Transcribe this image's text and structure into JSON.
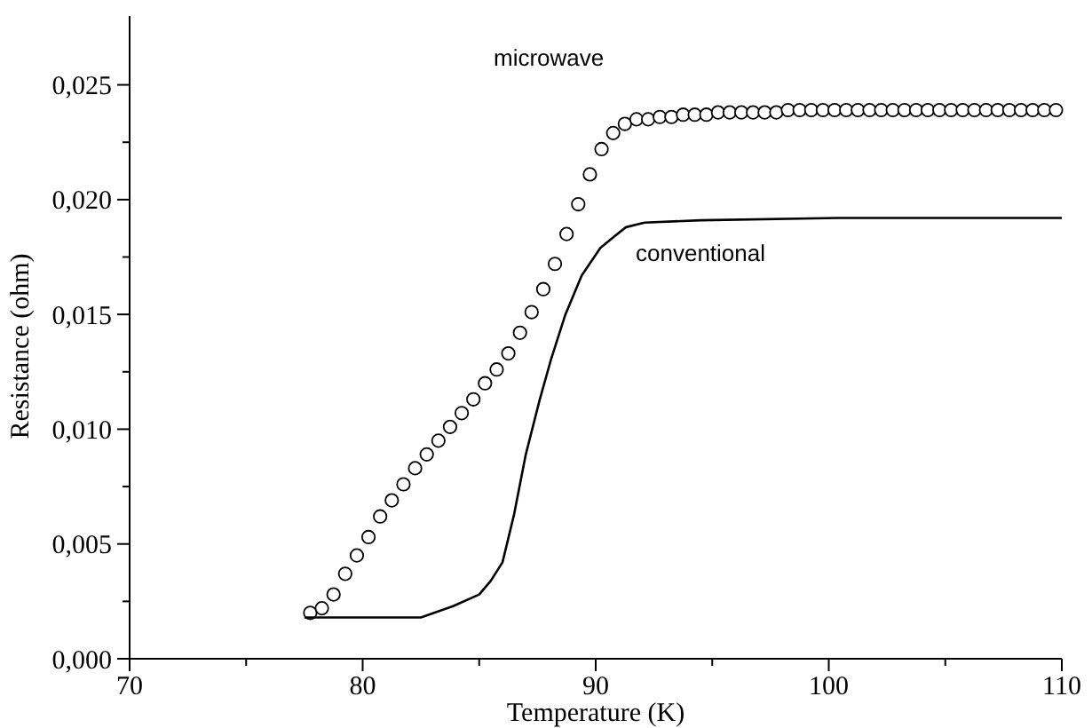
{
  "chart_data": {
    "type": "scatter",
    "xlabel": "Temperature (K)",
    "ylabel": "Resistance (ohm)",
    "xlim": [
      70,
      110
    ],
    "ylim": [
      0,
      0.028
    ],
    "xticks": [
      70,
      {
        "value": 75,
        "label": null
      },
      80,
      {
        "value": 85,
        "label": null
      },
      90,
      {
        "value": 95,
        "label": null
      },
      100,
      {
        "value": 105,
        "label": null
      },
      110
    ],
    "yticks": [
      {
        "value": 0,
        "label": "0,000"
      },
      {
        "value": 0.0025,
        "label": null
      },
      {
        "value": 0.005,
        "label": "0,005"
      },
      {
        "value": 0.0075,
        "label": null
      },
      {
        "value": 0.01,
        "label": "0,010"
      },
      {
        "value": 0.0125,
        "label": null
      },
      {
        "value": 0.015,
        "label": "0,015"
      },
      {
        "value": 0.0175,
        "label": null
      },
      {
        "value": 0.02,
        "label": "0,020"
      },
      {
        "value": 0.0225,
        "label": null
      },
      {
        "value": 0.025,
        "label": "0,025"
      }
    ],
    "grid": false,
    "series": [
      {
        "name": "microwave",
        "marker": "circle",
        "color": "#000000",
        "x": [
          77.75,
          78.25,
          78.75,
          79.25,
          79.75,
          80.25,
          80.75,
          81.25,
          81.75,
          82.25,
          82.75,
          83.25,
          83.75,
          84.25,
          84.75,
          85.25,
          85.75,
          86.25,
          86.75,
          87.25,
          87.75,
          88.25,
          88.75,
          89.25,
          89.75,
          90.25,
          90.75,
          91.25,
          91.75,
          92.25,
          92.75,
          93.25,
          93.75,
          94.25,
          94.75,
          95.25,
          95.75,
          96.25,
          96.75,
          97.25,
          97.75,
          98.25,
          98.75,
          99.25,
          99.75,
          100.25,
          100.75,
          101.25,
          101.75,
          102.25,
          102.75,
          103.25,
          103.75,
          104.25,
          104.75,
          105.25,
          105.75,
          106.25,
          106.75,
          107.25,
          107.75,
          108.25,
          108.75,
          109.25,
          109.75
        ],
        "values": [
          0.002,
          0.0022,
          0.0028,
          0.0037,
          0.0045,
          0.0053,
          0.0062,
          0.0069,
          0.0076,
          0.0083,
          0.0089,
          0.0095,
          0.0101,
          0.0107,
          0.0113,
          0.012,
          0.0126,
          0.0133,
          0.0142,
          0.0151,
          0.0161,
          0.0172,
          0.0185,
          0.0198,
          0.0211,
          0.0222,
          0.0229,
          0.0233,
          0.0235,
          0.0235,
          0.0236,
          0.0236,
          0.0237,
          0.0237,
          0.0237,
          0.0238,
          0.0238,
          0.0238,
          0.0238,
          0.0238,
          0.0238,
          0.0239,
          0.0239,
          0.0239,
          0.0239,
          0.0239,
          0.0239,
          0.0239,
          0.0239,
          0.0239,
          0.0239,
          0.0239,
          0.0239,
          0.0239,
          0.0239,
          0.0239,
          0.0239,
          0.0239,
          0.0239,
          0.0239,
          0.0239,
          0.0239,
          0.0239,
          0.0239,
          0.0239
        ]
      },
      {
        "name": "conventional",
        "type": "line",
        "line_style": "solid",
        "color": "#000000",
        "x": [
          77.5,
          82.5,
          83.9,
          85.0,
          85.5,
          86.0,
          86.5,
          87.0,
          87.6,
          88.1,
          88.7,
          89.4,
          90.2,
          90.8,
          91.3,
          92.1,
          94.5,
          100.4,
          110
        ],
        "values": [
          0.0018,
          0.0018,
          0.0023,
          0.0028,
          0.0034,
          0.0042,
          0.0063,
          0.0089,
          0.0113,
          0.0131,
          0.015,
          0.0167,
          0.0179,
          0.0184,
          0.0188,
          0.019,
          0.0191,
          0.0192,
          0.0192
        ]
      }
    ]
  }
}
